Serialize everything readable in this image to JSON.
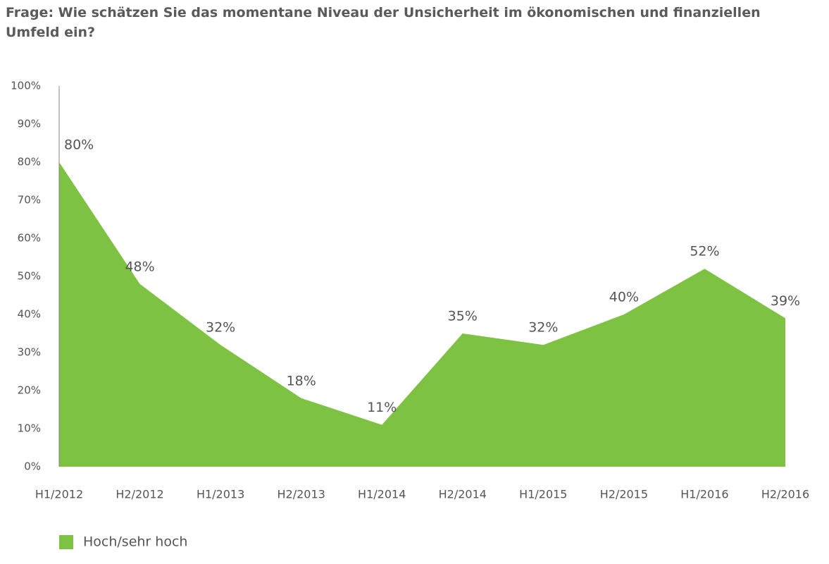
{
  "chart_data": {
    "type": "area",
    "title": "Frage: Wie schätzen Sie das momentane Niveau der Unsicherheit im ökonomischen und finanziellen Umfeld ein?",
    "categories": [
      "H1/2012",
      "H2/2012",
      "H1/2013",
      "H2/2013",
      "H1/2014",
      "H2/2014",
      "H1/2015",
      "H2/2015",
      "H1/2016",
      "H2/2016"
    ],
    "series": [
      {
        "name": "Hoch/sehr hoch",
        "color": "#7dc242",
        "values": [
          80,
          48,
          32,
          18,
          11,
          35,
          32,
          40,
          52,
          39
        ],
        "value_labels": [
          "80%",
          "48%",
          "32%",
          "18%",
          "11%",
          "35%",
          "32%",
          "40%",
          "52%",
          "39%"
        ]
      }
    ],
    "ylim": [
      0,
      100
    ],
    "yticks": [
      {
        "value": 0,
        "label": "0%"
      },
      {
        "value": 10,
        "label": "10%"
      },
      {
        "value": 20,
        "label": "20%"
      },
      {
        "value": 30,
        "label": "30%"
      },
      {
        "value": 40,
        "label": "40%"
      },
      {
        "value": 50,
        "label": "50%"
      },
      {
        "value": 60,
        "label": "60%"
      },
      {
        "value": 70,
        "label": "70%"
      },
      {
        "value": 80,
        "label": "80%"
      },
      {
        "value": 90,
        "label": "90%"
      },
      {
        "value": 100,
        "label": "100%"
      }
    ],
    "grid": false,
    "legend": "bottom-left"
  }
}
